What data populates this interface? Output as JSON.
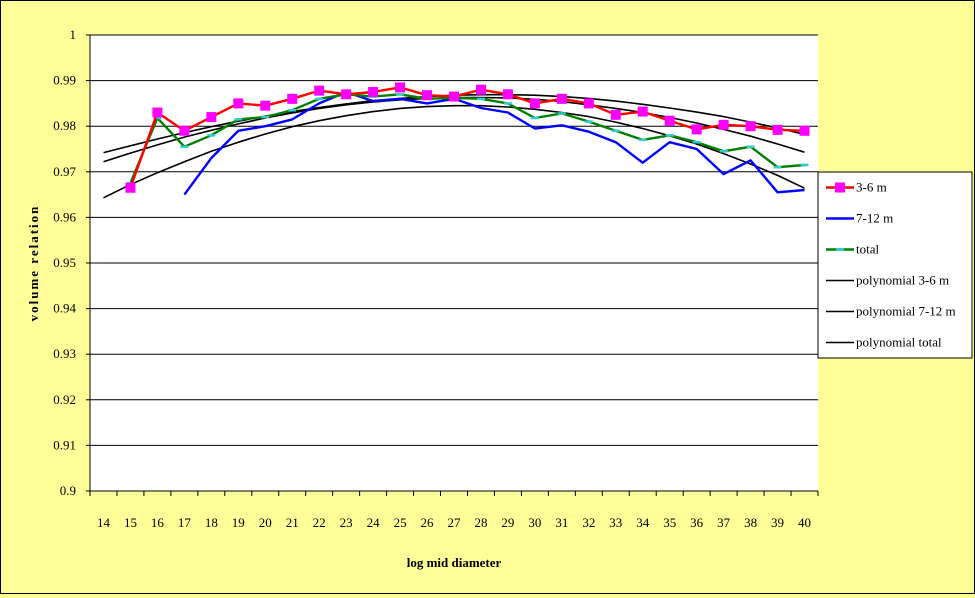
{
  "chart_data": {
    "type": "line",
    "xlabel": "log mid diameter",
    "ylabel": "volume relation",
    "ylim": [
      0.9,
      1.0
    ],
    "yticks": [
      0.9,
      0.91,
      0.92,
      0.93,
      0.94,
      0.95,
      0.96,
      0.97,
      0.98,
      0.99,
      1.0
    ],
    "ytick_labels": [
      "0.9",
      "0.91",
      "0.92",
      "0.93",
      "0.94",
      "0.95",
      "0.96",
      "0.97",
      "0.98",
      "0.99",
      "1"
    ],
    "categories": [
      "14",
      "15",
      "16",
      "17",
      "18",
      "19",
      "20",
      "21",
      "22",
      "23",
      "24",
      "25",
      "26",
      "27",
      "28",
      "29",
      "30",
      "31",
      "32",
      "33",
      "34",
      "35",
      "36",
      "37",
      "38",
      "39",
      "40"
    ],
    "grid": true,
    "legend_position": "right",
    "series": [
      {
        "name": "3-6 m",
        "color": "#ff0000",
        "marker": "square",
        "marker_color": "#ff00ff",
        "x": [
          15,
          16,
          17,
          18,
          19,
          20,
          21,
          22,
          23,
          24,
          25,
          26,
          27,
          28,
          29,
          30,
          31,
          32,
          33,
          34,
          35,
          36,
          37,
          38,
          39,
          40
        ],
        "values": [
          0.9665,
          0.983,
          0.979,
          0.982,
          0.985,
          0.9845,
          0.986,
          0.9878,
          0.987,
          0.9875,
          0.9885,
          0.9868,
          0.9865,
          0.988,
          0.987,
          0.985,
          0.986,
          0.985,
          0.9825,
          0.9832,
          0.9812,
          0.9793,
          0.9803,
          0.98,
          0.9792,
          0.979
        ]
      },
      {
        "name": "7-12 m",
        "color": "#0000ff",
        "x": [
          17,
          18,
          19,
          20,
          21,
          22,
          23,
          24,
          25,
          26,
          27,
          28,
          29,
          30,
          31,
          32,
          33,
          34,
          35,
          36,
          37,
          38,
          39,
          40
        ],
        "values": [
          0.965,
          0.973,
          0.979,
          0.98,
          0.9815,
          0.985,
          0.9875,
          0.9855,
          0.986,
          0.985,
          0.986,
          0.984,
          0.983,
          0.9795,
          0.9802,
          0.9788,
          0.9765,
          0.972,
          0.9765,
          0.975,
          0.9695,
          0.9725,
          0.9655,
          0.966
        ]
      },
      {
        "name": "total",
        "color": "#008000",
        "marker": "dash",
        "marker_color": "#33cccc",
        "x": [
          15,
          16,
          17,
          18,
          19,
          20,
          21,
          22,
          23,
          24,
          25,
          26,
          27,
          28,
          29,
          30,
          31,
          32,
          33,
          34,
          35,
          36,
          37,
          38,
          39,
          40
        ],
        "values": [
          0.9675,
          0.9818,
          0.9755,
          0.978,
          0.9815,
          0.982,
          0.9835,
          0.986,
          0.987,
          0.9865,
          0.987,
          0.986,
          0.9862,
          0.986,
          0.985,
          0.9818,
          0.9828,
          0.981,
          0.979,
          0.977,
          0.978,
          0.9765,
          0.9745,
          0.9755,
          0.971,
          0.9715
        ]
      },
      {
        "name": "polynomial 3-6 m",
        "color": "#000000",
        "x": [
          14,
          15,
          16,
          17,
          18,
          19,
          20,
          21,
          22,
          23,
          24,
          25,
          26,
          27,
          28,
          29,
          30,
          31,
          32,
          33,
          34,
          35,
          36,
          37,
          38,
          39,
          40
        ],
        "values": [
          0.9742,
          0.9757,
          0.9772,
          0.9786,
          0.9799,
          0.9811,
          0.9822,
          0.9832,
          0.9841,
          0.9849,
          0.9856,
          0.9861,
          0.9865,
          0.9868,
          0.9869,
          0.9869,
          0.9868,
          0.9865,
          0.9861,
          0.9855,
          0.9848,
          0.984,
          0.9831,
          0.9821,
          0.9809,
          0.9796,
          0.9782
        ]
      },
      {
        "name": "polynomial 7-12 m",
        "color": "#000000",
        "x": [
          14,
          15,
          16,
          17,
          18,
          19,
          20,
          21,
          22,
          23,
          24,
          25,
          26,
          27,
          28,
          29,
          30,
          31,
          32,
          33,
          34,
          35,
          36,
          37,
          38,
          39,
          40
        ],
        "values": [
          0.9643,
          0.9672,
          0.9698,
          0.9722,
          0.9745,
          0.9765,
          0.9783,
          0.9799,
          0.9812,
          0.9823,
          0.9832,
          0.9839,
          0.9843,
          0.9845,
          0.9845,
          0.9842,
          0.9837,
          0.983,
          0.9821,
          0.9809,
          0.9795,
          0.9779,
          0.9761,
          0.974,
          0.9717,
          0.9692,
          0.9664
        ]
      },
      {
        "name": "polynomial total",
        "color": "#000000",
        "x": [
          14,
          15,
          16,
          17,
          18,
          19,
          20,
          21,
          22,
          23,
          24,
          25,
          26,
          27,
          28,
          29,
          30,
          31,
          32,
          33,
          34,
          35,
          36,
          37,
          38,
          39,
          40
        ],
        "values": [
          0.9722,
          0.9741,
          0.9759,
          0.9776,
          0.9791,
          0.9805,
          0.9818,
          0.9829,
          0.9839,
          0.9847,
          0.9853,
          0.9858,
          0.9861,
          0.9863,
          0.9863,
          0.9862,
          0.9859,
          0.9854,
          0.9847,
          0.9839,
          0.983,
          0.9819,
          0.9807,
          0.9793,
          0.9778,
          0.9761,
          0.9743
        ]
      }
    ]
  }
}
